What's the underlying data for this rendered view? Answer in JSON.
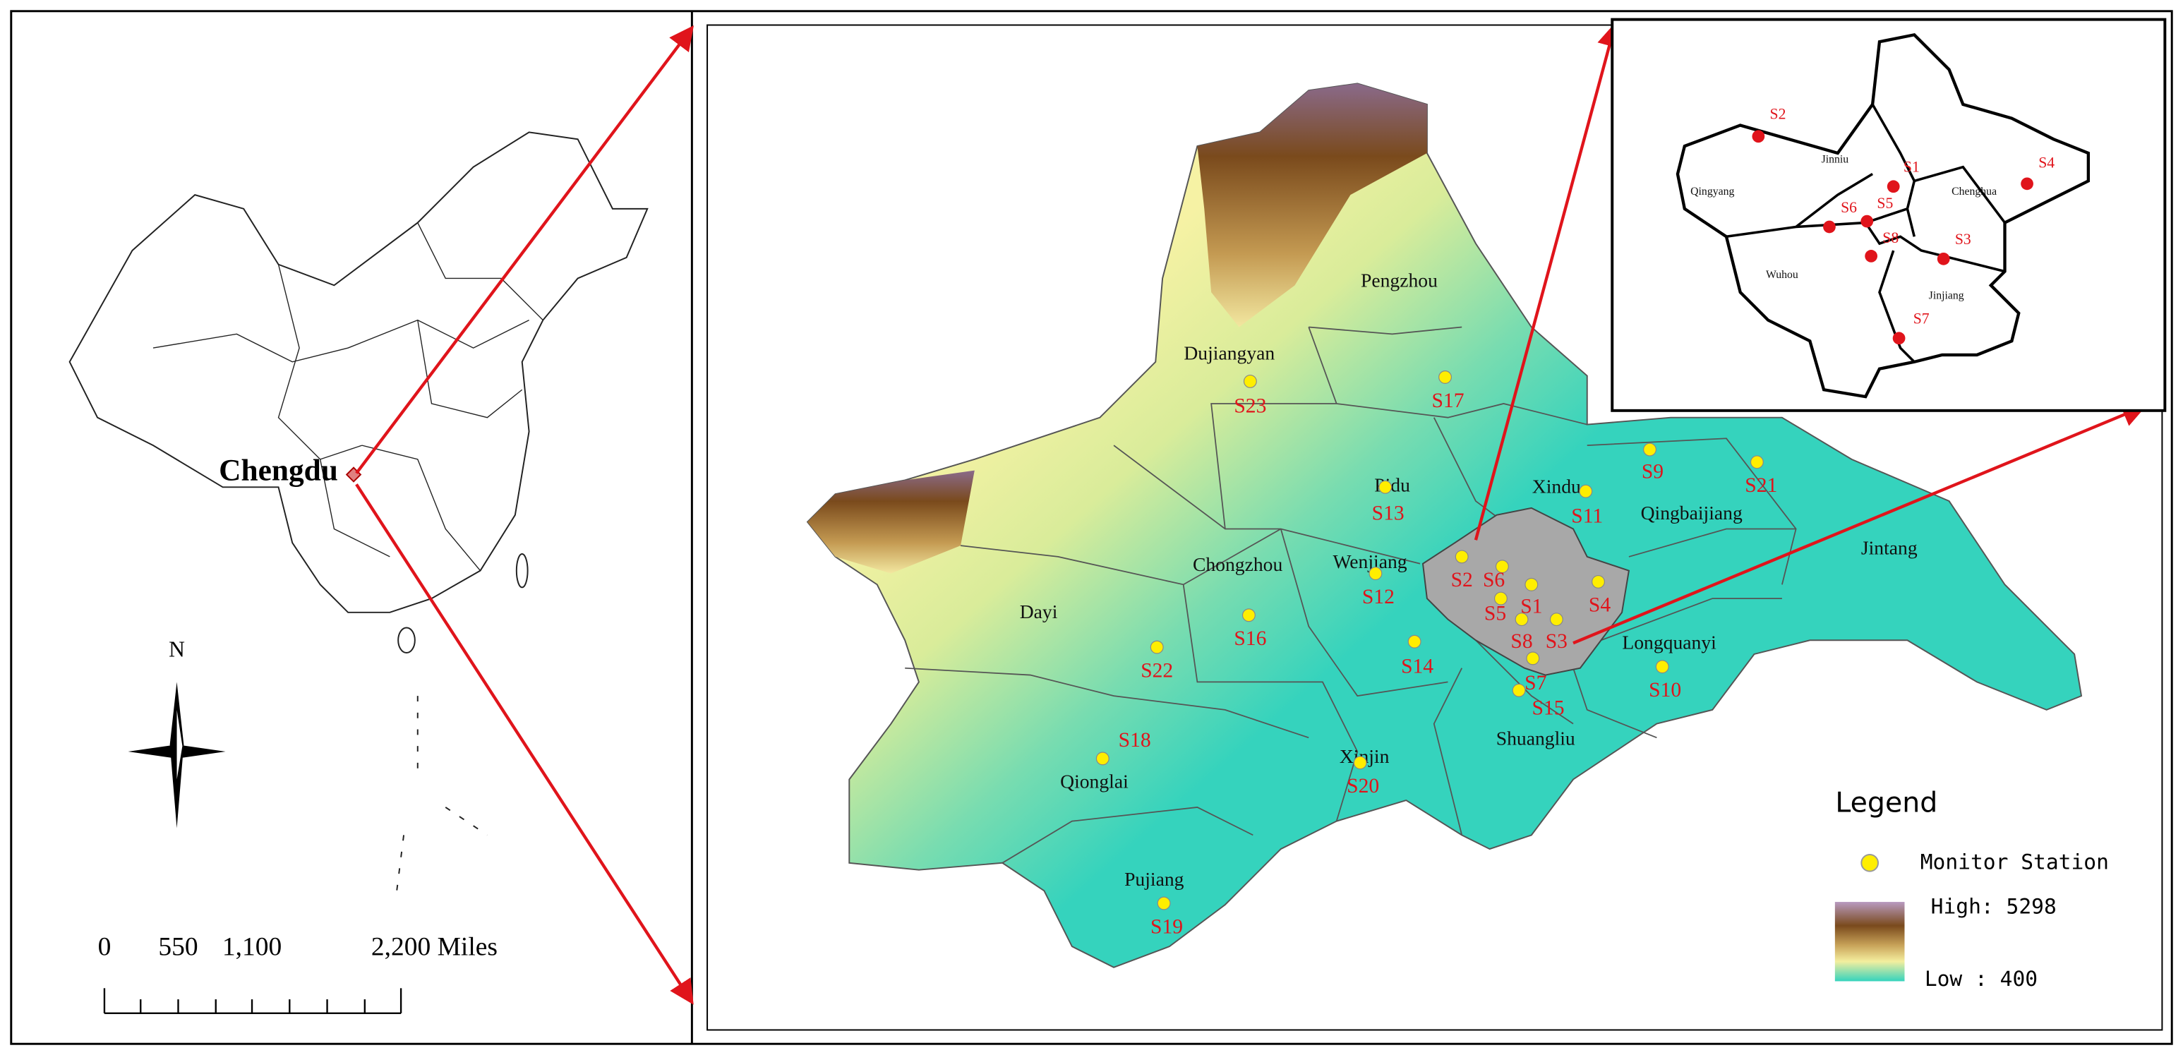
{
  "overview": {
    "city_label": "Chengdu",
    "north_label": "N",
    "scale_labels": [
      "0",
      "550",
      "1,100",
      "2,200 Miles"
    ]
  },
  "region": {
    "districts": [
      "Pengzhou",
      "Dujiangyan",
      "Pidu",
      "Xindu",
      "Qingbaijiang",
      "Jintang",
      "Wenjiang",
      "Chongzhou",
      "Dayi",
      "Longquanyi",
      "Shuangliu",
      "Xinjin",
      "Qionglai",
      "Pujiang"
    ],
    "stations": [
      "S23",
      "S17",
      "S13",
      "S11",
      "S9",
      "S21",
      "S2",
      "S6",
      "S12",
      "S5",
      "S1",
      "S4",
      "S3",
      "S8",
      "S16",
      "S22",
      "S14",
      "S7",
      "S15",
      "S10",
      "S18",
      "S20",
      "S19"
    ]
  },
  "inset": {
    "districts": [
      "Jinniu",
      "Qingyang",
      "Chenghua",
      "Wuhou",
      "Jinjiang"
    ],
    "stations": [
      "S2",
      "S1",
      "S4",
      "S6",
      "S5",
      "S8",
      "S3",
      "S7"
    ]
  },
  "legend": {
    "title": "Legend",
    "station": "Monitor Station",
    "high": "High: 5298",
    "low": "Low : 400"
  }
}
